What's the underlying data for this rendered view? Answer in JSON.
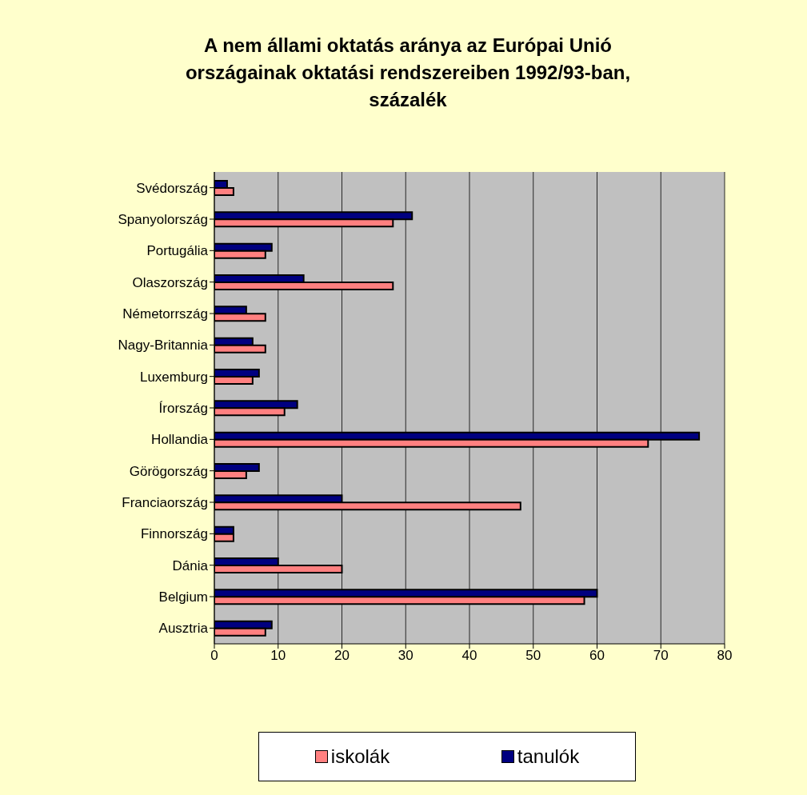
{
  "chart_data": {
    "type": "bar",
    "orientation": "horizontal",
    "title": "A nem állami oktatás aránya az Európai Unió országainak oktatási rendszereiben 1992/93-ban, százalék",
    "categories": [
      "Svédország",
      "Spanyolország",
      "Portugália",
      "Olaszország",
      "Németorrszág",
      "Nagy-Britannia",
      "Luxemburg",
      "Írország",
      "Hollandia",
      "Görögország",
      "Franciaország",
      "Finnország",
      "Dánia",
      "Belgium",
      "Ausztria"
    ],
    "series": [
      {
        "name": "iskolák",
        "color": "#ff8080",
        "values": [
          3,
          28,
          8,
          28,
          8,
          8,
          6,
          11,
          68,
          5,
          48,
          3,
          20,
          58,
          8
        ]
      },
      {
        "name": "tanulók",
        "color": "#000080",
        "values": [
          2,
          31,
          9,
          14,
          5,
          6,
          7,
          13,
          76,
          7,
          20,
          3,
          10,
          60,
          9
        ]
      }
    ],
    "xlim": [
      0,
      80
    ],
    "xticks": [
      0,
      10,
      20,
      30,
      40,
      50,
      60,
      70,
      80
    ],
    "grid": "x",
    "legend": "bottom"
  }
}
